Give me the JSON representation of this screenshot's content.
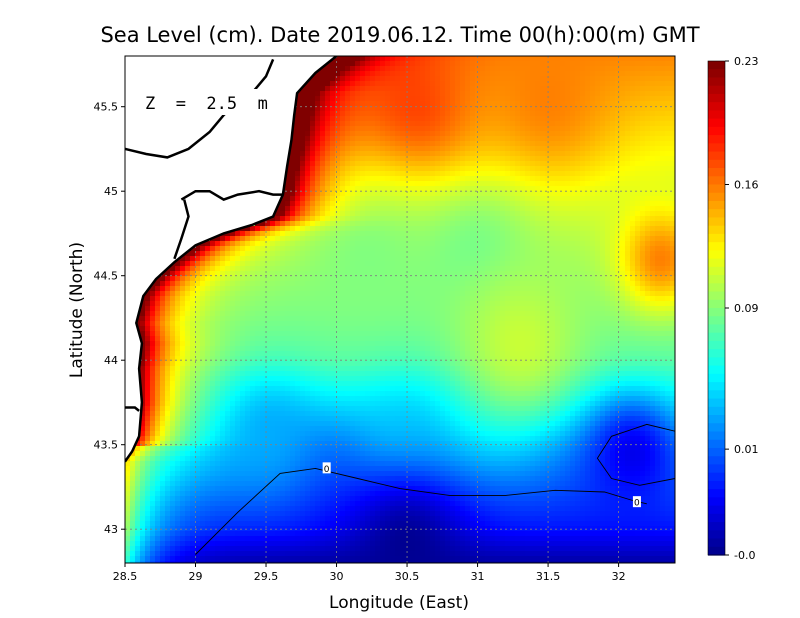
{
  "chart_data": {
    "type": "heatmap",
    "title": "Sea Level (cm). Date 2019.06.12. Time 00(h):00(m) GMT",
    "xlabel": "Longitude (East)",
    "ylabel": "Latitude (North)",
    "depth_label": "Z  =  2.5  m",
    "xlim": [
      28.5,
      32.4
    ],
    "ylim": [
      42.8,
      45.8
    ],
    "x_ticks": [
      "28.5",
      "29",
      "29.5",
      "30",
      "30.5",
      "31",
      "31.5",
      "32"
    ],
    "x_tick_values": [
      28.5,
      29,
      29.5,
      30,
      30.5,
      31,
      31.5,
      32
    ],
    "y_ticks": [
      "43",
      "43.5",
      "44",
      "44.5",
      "45",
      "45.5"
    ],
    "y_tick_values": [
      43,
      43.5,
      44,
      44.5,
      45,
      45.5
    ],
    "grid": true,
    "colorbar": {
      "min": -0.05,
      "max": 0.23,
      "tick_labels": [
        "0.23",
        "0.16",
        "0.09",
        "0.01",
        "-0.0"
      ],
      "tick_values": [
        0.23,
        0.16,
        0.09,
        0.01,
        -0.05
      ],
      "colors": [
        "#00007f",
        "#0000ff",
        "#007fff",
        "#00ffff",
        "#7fff7f",
        "#ffff00",
        "#ff7f00",
        "#ff0000",
        "#7f0000"
      ]
    },
    "contour_labels": [
      "0",
      "0"
    ],
    "land_color": "#ffffff",
    "coast_color": "#000000",
    "contour_zero_south": [
      [
        29.0,
        42.85
      ],
      [
        29.3,
        43.1
      ],
      [
        29.6,
        43.33
      ],
      [
        29.85,
        43.36
      ],
      [
        30.15,
        43.3
      ],
      [
        30.45,
        43.24
      ],
      [
        30.8,
        43.2
      ],
      [
        31.2,
        43.2
      ],
      [
        31.55,
        43.23
      ],
      [
        31.9,
        43.22
      ],
      [
        32.1,
        43.17
      ],
      [
        32.2,
        43.15
      ]
    ],
    "contour_zero_east": [
      [
        32.4,
        43.58
      ],
      [
        32.2,
        43.62
      ],
      [
        31.95,
        43.55
      ],
      [
        31.85,
        43.42
      ],
      [
        31.95,
        43.3
      ],
      [
        32.15,
        43.26
      ],
      [
        32.4,
        43.3
      ]
    ],
    "coastline": [
      [
        28.5,
        43.4
      ],
      [
        28.55,
        43.46
      ],
      [
        28.6,
        43.55
      ],
      [
        28.62,
        43.75
      ],
      [
        28.6,
        43.95
      ],
      [
        28.62,
        44.1
      ],
      [
        28.58,
        44.22
      ],
      [
        28.63,
        44.38
      ],
      [
        28.72,
        44.48
      ],
      [
        28.85,
        44.58
      ],
      [
        29.0,
        44.68
      ],
      [
        29.2,
        44.75
      ],
      [
        29.4,
        44.8
      ],
      [
        29.55,
        44.85
      ],
      [
        29.62,
        44.98
      ],
      [
        29.65,
        45.15
      ],
      [
        29.68,
        45.3
      ],
      [
        29.7,
        45.45
      ],
      [
        29.72,
        45.58
      ],
      [
        29.85,
        45.7
      ],
      [
        30.0,
        45.8
      ]
    ],
    "land_lines": [
      [
        [
          28.5,
          45.25
        ],
        [
          28.65,
          45.22
        ],
        [
          28.8,
          45.2
        ],
        [
          28.95,
          45.25
        ],
        [
          29.1,
          45.35
        ],
        [
          29.2,
          45.45
        ],
        [
          29.3,
          45.52
        ],
        [
          29.42,
          45.6
        ],
        [
          29.5,
          45.68
        ],
        [
          29.55,
          45.78
        ]
      ],
      [
        [
          28.9,
          44.95
        ],
        [
          29.0,
          45.0
        ],
        [
          29.1,
          45.0
        ],
        [
          29.2,
          44.95
        ],
        [
          29.3,
          44.98
        ],
        [
          29.45,
          45.0
        ],
        [
          29.55,
          44.98
        ],
        [
          29.62,
          44.98
        ]
      ],
      [
        [
          28.85,
          44.6
        ],
        [
          28.9,
          44.72
        ],
        [
          28.95,
          44.85
        ],
        [
          28.92,
          44.95
        ]
      ],
      [
        [
          28.5,
          43.72
        ],
        [
          28.57,
          43.72
        ],
        [
          28.6,
          43.7
        ]
      ]
    ],
    "field_spots": [
      {
        "x": 30.6,
        "y": 45.5,
        "v": 0.175,
        "r": 0.45
      },
      {
        "x": 31.5,
        "y": 45.55,
        "v": 0.16,
        "r": 0.5
      },
      {
        "x": 32.3,
        "y": 44.6,
        "v": 0.16,
        "r": 0.3
      },
      {
        "x": 30.2,
        "y": 44.6,
        "v": 0.09,
        "r": 0.45
      },
      {
        "x": 31.0,
        "y": 44.6,
        "v": 0.085,
        "r": 0.4
      },
      {
        "x": 31.3,
        "y": 44.1,
        "v": 0.11,
        "r": 0.45
      },
      {
        "x": 30.5,
        "y": 43.55,
        "v": 0.045,
        "r": 0.35
      },
      {
        "x": 29.5,
        "y": 43.55,
        "v": 0.03,
        "r": 0.35
      },
      {
        "x": 30.5,
        "y": 42.9,
        "v": -0.045,
        "r": 0.45
      },
      {
        "x": 32.1,
        "y": 43.45,
        "v": -0.02,
        "r": 0.3
      }
    ]
  }
}
